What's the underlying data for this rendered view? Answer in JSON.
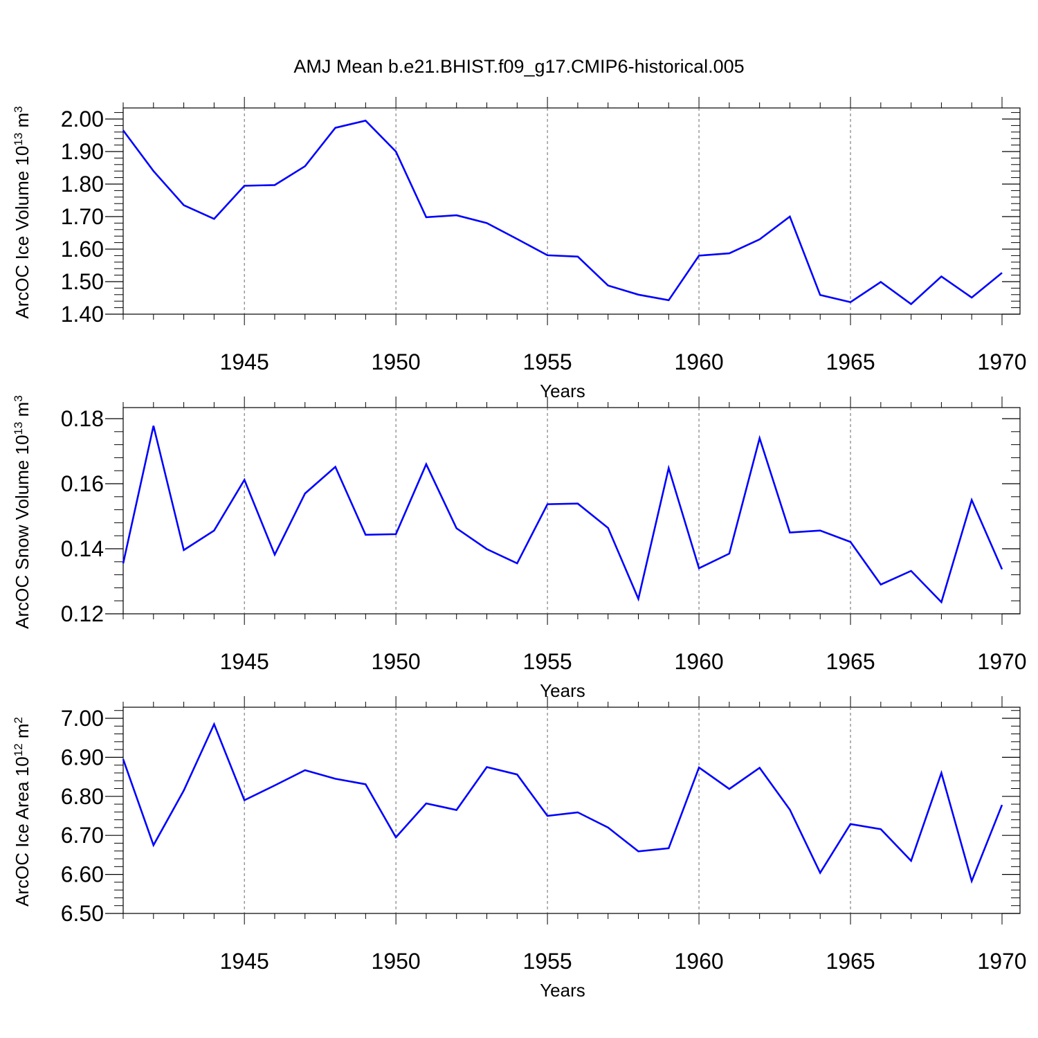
{
  "figure_title": "AMJ Mean b.e21.BHIST.f09_g17.CMIP6-historical.005",
  "chart_data": [
    {
      "type": "line",
      "title": "AMJ Mean b.e21.BHIST.f09_g17.CMIP6-historical.005",
      "xlabel": "Years",
      "ylabel": {
        "main": "ArcOC Ice Volume 10",
        "exp": "13",
        "unit": " m",
        "unit_exp": "3"
      },
      "xlim": [
        1941,
        1970
      ],
      "ylim": [
        1.4,
        2.0
      ],
      "xticks": [
        1945,
        1950,
        1955,
        1960,
        1965,
        1970
      ],
      "yticks": [
        "1.40",
        "1.50",
        "1.60",
        "1.70",
        "1.80",
        "1.90",
        "2.00"
      ],
      "grid": "vertical dashed at major x ticks",
      "line_color": "#0000ff",
      "x": [
        1941,
        1942,
        1943,
        1944,
        1945,
        1946,
        1947,
        1948,
        1949,
        1950,
        1951,
        1952,
        1953,
        1954,
        1955,
        1956,
        1957,
        1958,
        1959,
        1960,
        1961,
        1962,
        1963,
        1964,
        1965,
        1966,
        1967,
        1968,
        1969,
        1970
      ],
      "y": [
        1.965,
        1.84,
        1.735,
        1.693,
        1.795,
        1.797,
        1.855,
        1.973,
        1.995,
        1.9,
        1.698,
        1.704,
        1.68,
        1.631,
        1.581,
        1.577,
        1.488,
        1.46,
        1.443,
        1.58,
        1.587,
        1.63,
        1.7,
        1.459,
        1.437,
        1.499,
        1.431,
        1.516,
        1.451,
        1.527
      ]
    },
    {
      "type": "line",
      "xlabel": "Years",
      "ylabel": {
        "main": "ArcOC Snow Volume 10",
        "exp": "13",
        "unit": " m",
        "unit_exp": "3"
      },
      "xlim": [
        1941,
        1970
      ],
      "ylim": [
        0.12,
        0.18
      ],
      "xticks": [
        1945,
        1950,
        1955,
        1960,
        1965,
        1970
      ],
      "yticks": [
        "0.12",
        "0.14",
        "0.16",
        "0.18"
      ],
      "grid": "vertical dashed at major x ticks",
      "line_color": "#0000ff",
      "x": [
        1941,
        1942,
        1943,
        1944,
        1945,
        1946,
        1947,
        1948,
        1949,
        1950,
        1951,
        1952,
        1953,
        1954,
        1955,
        1956,
        1957,
        1958,
        1959,
        1960,
        1961,
        1962,
        1963,
        1964,
        1965,
        1966,
        1967,
        1968,
        1969,
        1970
      ],
      "y": [
        0.1355,
        0.1778,
        0.1396,
        0.1456,
        0.1612,
        0.1382,
        0.157,
        0.1652,
        0.1443,
        0.1445,
        0.166,
        0.1463,
        0.1399,
        0.1355,
        0.1537,
        0.1539,
        0.1464,
        0.1246,
        0.1648,
        0.134,
        0.1385,
        0.174,
        0.145,
        0.1456,
        0.1421,
        0.129,
        0.1332,
        0.1236,
        0.155,
        0.1337
      ]
    },
    {
      "type": "line",
      "xlabel": "Years",
      "ylabel": {
        "main": "ArcOC Ice Area 10",
        "exp": "12",
        "unit": " m",
        "unit_exp": "2"
      },
      "xlim": [
        1941,
        1970
      ],
      "ylim": [
        6.5,
        7.0
      ],
      "xticks": [
        1945,
        1950,
        1955,
        1960,
        1965,
        1970
      ],
      "yticks": [
        "6.50",
        "6.60",
        "6.70",
        "6.80",
        "6.90",
        "7.00"
      ],
      "grid": "vertical dashed at major x ticks",
      "line_color": "#0000ff",
      "x": [
        1941,
        1942,
        1943,
        1944,
        1945,
        1946,
        1947,
        1948,
        1949,
        1950,
        1951,
        1952,
        1953,
        1954,
        1955,
        1956,
        1957,
        1958,
        1959,
        1960,
        1961,
        1962,
        1963,
        1964,
        1965,
        1966,
        1967,
        1968,
        1969,
        1970
      ],
      "y": [
        6.895,
        6.675,
        6.815,
        6.985,
        6.79,
        6.828,
        6.867,
        6.845,
        6.831,
        6.695,
        6.782,
        6.765,
        6.875,
        6.856,
        6.75,
        6.759,
        6.72,
        6.659,
        6.667,
        6.874,
        6.819,
        6.873,
        6.766,
        6.604,
        6.729,
        6.716,
        6.635,
        6.86,
        6.583,
        6.778
      ]
    }
  ]
}
